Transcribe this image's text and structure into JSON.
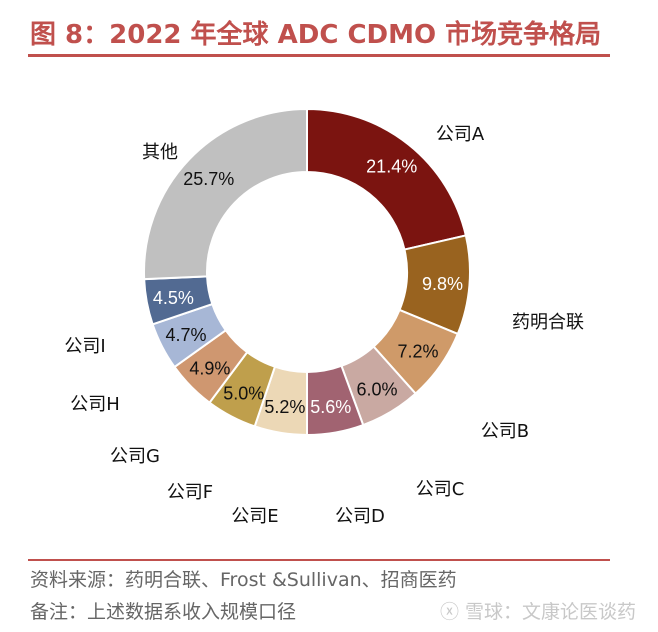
{
  "title": "图 8：2022 年全球 ADC CDMO 市场竞争格局",
  "chart_data": {
    "type": "pie",
    "donut": true,
    "categories": [
      "公司A",
      "药明合联",
      "公司B",
      "公司C",
      "公司D",
      "公司E",
      "公司F",
      "公司G",
      "公司H",
      "公司I",
      "其他"
    ],
    "values": [
      21.4,
      9.8,
      7.2,
      6.0,
      5.6,
      5.2,
      5.0,
      4.9,
      4.7,
      4.5,
      25.7
    ],
    "data_labels": [
      "21.4%",
      "9.8%",
      "7.2%",
      "6.0%",
      "5.6%",
      "5.2%",
      "5.0%",
      "4.9%",
      "4.7%",
      "4.5%",
      "25.7%"
    ],
    "colors": [
      "#7b1410",
      "#99631f",
      "#cf9a69",
      "#c9a9a2",
      "#a16371",
      "#ecd8b6",
      "#bf9f4c",
      "#cf9770",
      "#a7b7d6",
      "#526a92",
      "#c0c0c0"
    ],
    "legend": "none"
  },
  "footer": {
    "source": "资料来源：药明合联、Frost &Sullivan、招商医药",
    "note": "备注：上述数据系收入规模口径",
    "watermark": "雪球：文康论医谈药"
  }
}
